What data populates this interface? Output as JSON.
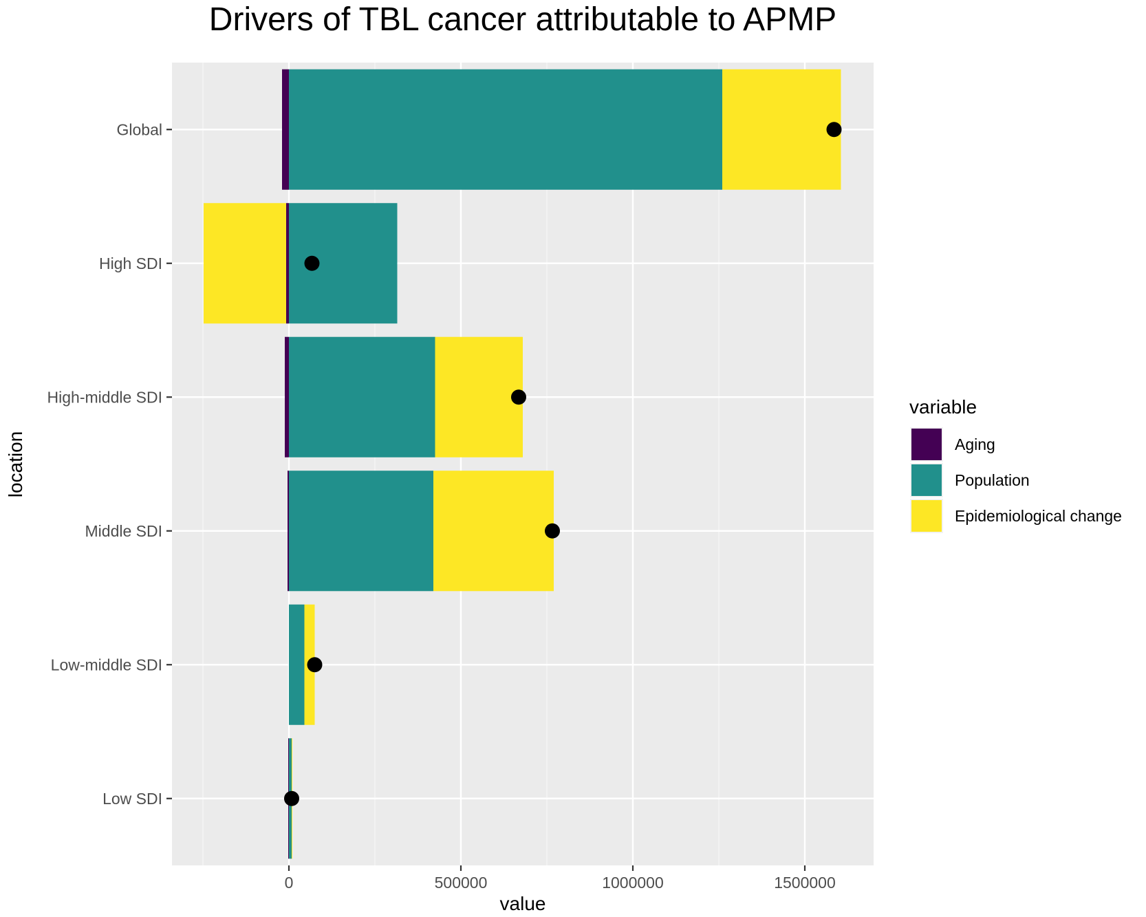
{
  "chart_data": {
    "type": "bar",
    "orientation": "horizontal",
    "stacked": true,
    "title": "Drivers of TBL cancer attributable to APMP",
    "xlabel": "value",
    "ylabel": "location",
    "xlim": [
      -340000,
      1700000
    ],
    "xticks": [
      0,
      500000,
      1000000,
      1500000
    ],
    "xtick_labels": [
      "0",
      "500000",
      "1000000",
      "1500000"
    ],
    "categories": [
      "Global",
      "High SDI",
      "High-middle SDI",
      "Middle SDI",
      "Low-middle SDI",
      "Low SDI"
    ],
    "series": [
      {
        "name": "Aging",
        "color": "#440154",
        "values": [
          -20000,
          -8000,
          -12000,
          -4000,
          0,
          -2000
        ]
      },
      {
        "name": "Population",
        "color": "#21908C",
        "values": [
          1260000,
          315000,
          425000,
          420000,
          45000,
          8000
        ]
      },
      {
        "name": "Epidemiological change",
        "color": "#FDE725",
        "values": [
          345000,
          -240000,
          255000,
          350000,
          30000,
          2000
        ]
      }
    ],
    "totals": [
      1585000,
      67000,
      668000,
      766000,
      75000,
      8000
    ],
    "totals_marker": "black dot",
    "legend": {
      "title": "variable",
      "position": "right",
      "entries": [
        "Aging",
        "Population",
        "Epidemiological change"
      ]
    },
    "grid": true,
    "background": "#EBEBEB"
  }
}
